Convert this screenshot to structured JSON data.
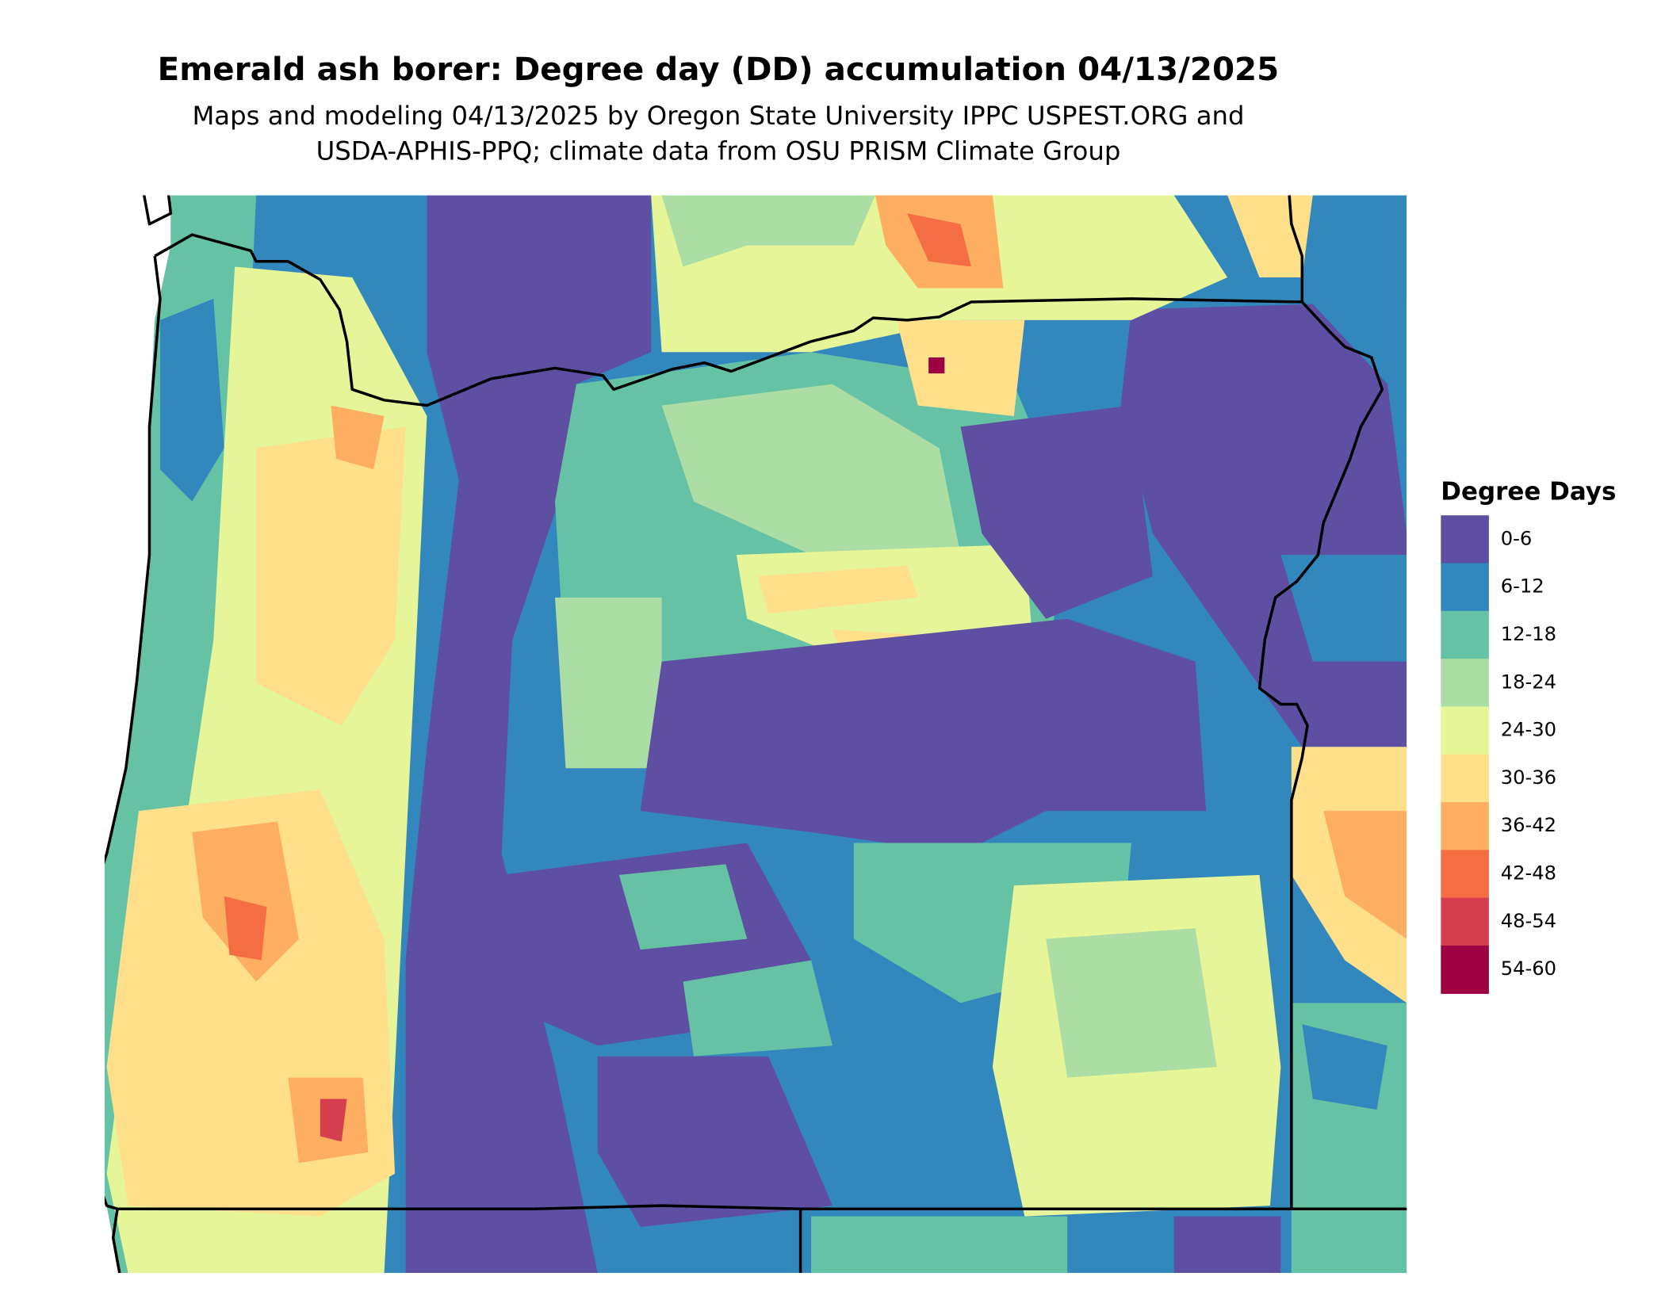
{
  "title": "Emerald ash borer: Degree day (DD) accumulation 04/13/2025",
  "subtitle": [
    "Maps and modeling 04/13/2025 by Oregon State University IPPC USPEST.ORG and",
    "USDA-APHIS-PPQ; climate data from OSU PRISM Climate Group"
  ],
  "legend": {
    "title": "Degree Days",
    "items": [
      {
        "label": "0-6",
        "color": "#5e4fa2"
      },
      {
        "label": "6-12",
        "color": "#3288bd"
      },
      {
        "label": "12-18",
        "color": "#66c2a5"
      },
      {
        "label": "18-24",
        "color": "#abdda4"
      },
      {
        "label": "24-30",
        "color": "#e6f598"
      },
      {
        "label": "30-36",
        "color": "#fee08b"
      },
      {
        "label": "36-42",
        "color": "#fdae61"
      },
      {
        "label": "42-48",
        "color": "#f46d43"
      },
      {
        "label": "48-54",
        "color": "#d53e4f"
      },
      {
        "label": "54-60",
        "color": "#9e0142"
      }
    ]
  }
}
